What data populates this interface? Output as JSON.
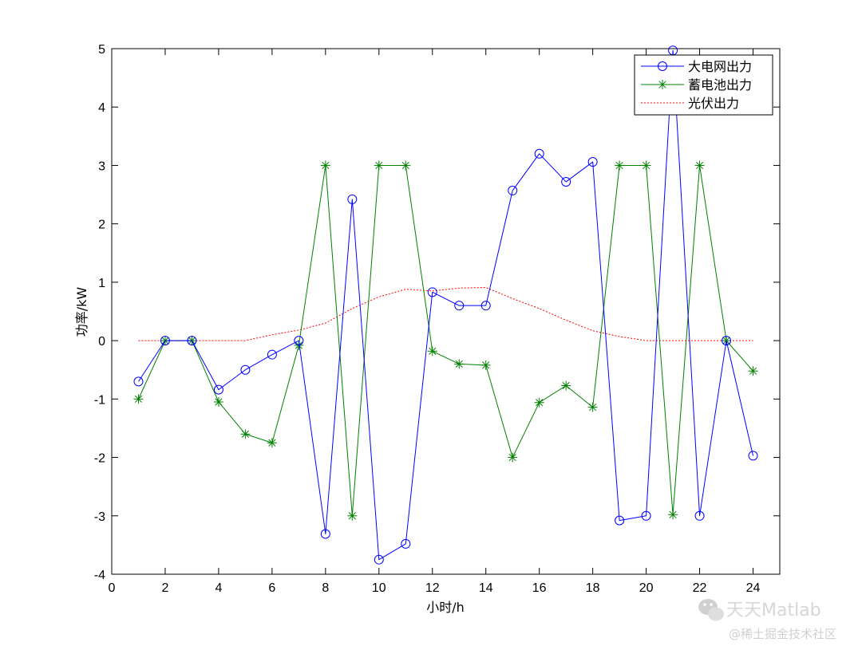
{
  "chart_data": {
    "type": "line",
    "title": "",
    "xlabel": "小时/h",
    "ylabel": "功率/kW",
    "xlim": [
      0,
      25
    ],
    "ylim": [
      -4,
      5
    ],
    "xticks": [
      0,
      2,
      4,
      6,
      8,
      10,
      12,
      14,
      16,
      18,
      20,
      22,
      24
    ],
    "yticks": [
      -4,
      -3,
      -2,
      -1,
      0,
      1,
      2,
      3,
      4,
      5
    ],
    "grid": false,
    "legend_position": "top-right",
    "x": [
      1,
      2,
      3,
      4,
      5,
      6,
      7,
      8,
      9,
      10,
      11,
      12,
      13,
      14,
      15,
      16,
      17,
      18,
      19,
      20,
      21,
      22,
      23,
      24
    ],
    "series": [
      {
        "name": "大电网出力",
        "color": "#0000ff",
        "marker": "circle",
        "line": "solid",
        "values": [
          -0.7,
          0,
          0,
          -0.84,
          -0.5,
          -0.24,
          0,
          -3.31,
          2.42,
          -3.75,
          -3.48,
          0.83,
          0.6,
          0.6,
          2.57,
          3.2,
          2.72,
          3.06,
          -3.08,
          -3.0,
          4.97,
          -3.0,
          0,
          -1.97
        ]
      },
      {
        "name": "蓄电池出力",
        "color": "#008000",
        "marker": "star",
        "line": "solid",
        "values": [
          -1.0,
          0,
          0,
          -1.05,
          -1.6,
          -1.75,
          -0.08,
          3.0,
          -3.0,
          3.0,
          3.0,
          -0.18,
          -0.4,
          -0.42,
          -2.0,
          -1.06,
          -0.77,
          -1.14,
          3.0,
          3.0,
          -2.98,
          3.0,
          0,
          -0.52
        ]
      },
      {
        "name": "光伏出力",
        "color": "#ff0000",
        "marker": "none",
        "line": "dotted",
        "values": [
          0,
          0,
          0,
          0,
          0,
          0.1,
          0.18,
          0.3,
          0.55,
          0.75,
          0.88,
          0.85,
          0.9,
          0.91,
          0.72,
          0.55,
          0.35,
          0.17,
          0.07,
          0,
          0,
          0,
          0,
          0
        ]
      }
    ]
  },
  "watermark": {
    "line1": "天天Matlab",
    "line2": "@稀土掘金技术社区",
    "icon": "wechat-icon"
  }
}
